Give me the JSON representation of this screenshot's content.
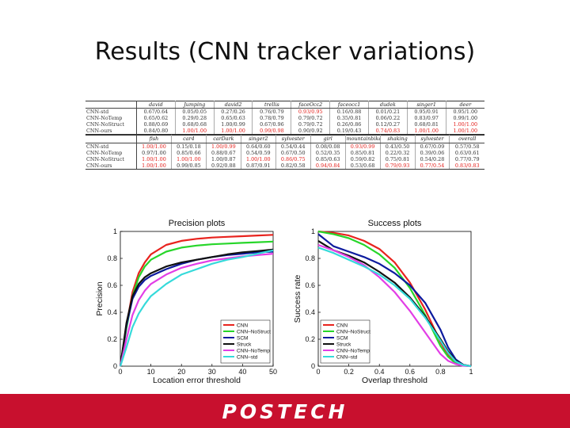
{
  "slide": {
    "title": "Results (CNN tracker variations)"
  },
  "table1": {
    "headers": [
      "",
      "david",
      "Jumping",
      "david2",
      "trellis",
      "faceOcc2",
      "faceocc1",
      "dudek",
      "singer1",
      "deer"
    ],
    "rows": [
      [
        "CNN-std",
        "0.67/0.64",
        "0.05/0.05",
        "0.27/0.26",
        "0.76/0.79",
        "0.93/0.95",
        "0.16/0.88",
        "0.01/0.21",
        "0.95/0.91",
        "0.95/1.00"
      ],
      [
        "CNN-NoTemp",
        "0.65/0.62",
        "0.29/0.28",
        "0.65/0.63",
        "0.78/0.79",
        "0.79/0.72",
        "0.35/0.81",
        "0.06/0.22",
        "0.83/0.97",
        "0.99/1.00"
      ],
      [
        "CNN-NoStruct",
        "0.88/0.69",
        "0.68/0.68",
        "1.00/0.99",
        "0.67/0.96",
        "0.79/0.72",
        "0.26/0.86",
        "0.12/0.27",
        "0.68/0.81",
        "1.00/1.00"
      ],
      [
        "CNN-ours",
        "0.84/0.80",
        "1.00/1.00",
        "1.00/1.00",
        "0.99/0.98",
        "0.90/0.92",
        "0.19/0.43",
        "0.74/0.83",
        "1.00/1.00",
        "1.00/1.00"
      ]
    ]
  },
  "table2": {
    "headers": [
      "",
      "fish",
      "car4",
      "carDark",
      "singer2",
      "sylvester",
      "girl",
      "mountainbike",
      "shaking",
      "sylvester",
      "overall"
    ],
    "rows": [
      [
        "CNN-std",
        "1.00/1.00",
        "0.15/0.18",
        "1.00/0.99",
        "0.64/0.60",
        "0.54/0.44",
        "0.08/0.08",
        "0.93/0.99",
        "0.43/0.50",
        "0.67/0.09",
        "0.57/0.58"
      ],
      [
        "CNN-NoTemp",
        "0.97/1.00",
        "0.85/0.66",
        "0.88/0.67",
        "0.54/0.59",
        "0.67/0.50",
        "0.52/0.35",
        "0.85/0.81",
        "0.22/0.32",
        "0.39/0.06",
        "0.63/0.61"
      ],
      [
        "CNN-NoStruct",
        "1.00/1.00",
        "1.00/1.00",
        "1.00/0.87",
        "1.00/1.00",
        "0.86/0.75",
        "0.85/0.63",
        "0.59/0.82",
        "0.75/0.81",
        "0.54/0.28",
        "0.77/0.79"
      ],
      [
        "CNN-ours",
        "1.00/1.00",
        "0.99/0.85",
        "0.92/0.88",
        "0.87/0.91",
        "0.82/0.58",
        "0.94/0.84",
        "0.53/0.68",
        "0.79/0.93",
        "0.77/0.54",
        "0.83/0.83"
      ]
    ]
  },
  "table_highlight_colors": {
    "best": "#e4201c",
    "normal": "#333333"
  },
  "chart_data": [
    {
      "type": "line",
      "title": "Precision plots",
      "xlabel": "Location error threshold",
      "ylabel": "Precision",
      "xlim": [
        0,
        50
      ],
      "ylim": [
        0,
        1
      ],
      "xticks": [
        0,
        10,
        20,
        30,
        40,
        50
      ],
      "yticks": [
        0,
        0.2,
        0.4,
        0.6,
        0.8,
        1
      ],
      "grid": false,
      "legend": "bottom-right",
      "x": [
        0,
        2,
        4,
        6,
        8,
        10,
        15,
        20,
        25,
        30,
        35,
        40,
        45,
        50
      ],
      "series": [
        {
          "name": "CNN",
          "color": "#e8231e",
          "values": [
            0,
            0.3,
            0.55,
            0.69,
            0.77,
            0.83,
            0.9,
            0.93,
            0.945,
            0.955,
            0.96,
            0.965,
            0.97,
            0.975
          ]
        },
        {
          "name": "CNN–NoStruct",
          "color": "#27d62a",
          "values": [
            0,
            0.28,
            0.52,
            0.66,
            0.74,
            0.79,
            0.85,
            0.88,
            0.895,
            0.905,
            0.91,
            0.915,
            0.92,
            0.925
          ]
        },
        {
          "name": "SCM",
          "color": "#0c1a9e",
          "values": [
            0,
            0.3,
            0.5,
            0.59,
            0.64,
            0.67,
            0.72,
            0.76,
            0.79,
            0.81,
            0.825,
            0.835,
            0.845,
            0.85
          ]
        },
        {
          "name": "Struck",
          "color": "#111111",
          "values": [
            0,
            0.32,
            0.52,
            0.61,
            0.66,
            0.69,
            0.74,
            0.77,
            0.79,
            0.81,
            0.83,
            0.845,
            0.855,
            0.865
          ]
        },
        {
          "name": "CNN–NoTemp",
          "color": "#e23ee6",
          "values": [
            0,
            0.2,
            0.38,
            0.49,
            0.56,
            0.61,
            0.68,
            0.73,
            0.76,
            0.785,
            0.8,
            0.815,
            0.825,
            0.835
          ]
        },
        {
          "name": "CNN–std",
          "color": "#35dada",
          "values": [
            0,
            0.14,
            0.29,
            0.39,
            0.46,
            0.52,
            0.61,
            0.68,
            0.72,
            0.76,
            0.79,
            0.81,
            0.835,
            0.86
          ]
        }
      ]
    },
    {
      "type": "line",
      "title": "Success plots",
      "xlabel": "Overlap threshold",
      "ylabel": "Success rate",
      "xlim": [
        0,
        1
      ],
      "ylim": [
        0,
        1
      ],
      "xticks": [
        0,
        0.2,
        0.4,
        0.6,
        0.8,
        1
      ],
      "yticks": [
        0,
        0.2,
        0.4,
        0.6,
        0.8,
        1
      ],
      "grid": false,
      "legend": "bottom-left",
      "x": [
        0,
        0.1,
        0.2,
        0.3,
        0.4,
        0.5,
        0.6,
        0.7,
        0.8,
        0.85,
        0.9,
        0.95,
        1
      ],
      "series": [
        {
          "name": "CNN",
          "color": "#e8231e",
          "values": [
            1,
            0.99,
            0.97,
            0.93,
            0.87,
            0.77,
            0.62,
            0.42,
            0.18,
            0.08,
            0.03,
            0.005,
            0
          ]
        },
        {
          "name": "CNN–NoStruct",
          "color": "#27d62a",
          "values": [
            1,
            0.98,
            0.95,
            0.9,
            0.83,
            0.73,
            0.58,
            0.38,
            0.15,
            0.07,
            0.02,
            0.005,
            0
          ]
        },
        {
          "name": "SCM",
          "color": "#0c1a9e",
          "values": [
            0.98,
            0.89,
            0.85,
            0.81,
            0.76,
            0.69,
            0.6,
            0.47,
            0.27,
            0.14,
            0.05,
            0.01,
            0
          ]
        },
        {
          "name": "Struck",
          "color": "#111111",
          "values": [
            0.93,
            0.86,
            0.82,
            0.77,
            0.7,
            0.62,
            0.51,
            0.37,
            0.2,
            0.11,
            0.04,
            0.01,
            0
          ]
        },
        {
          "name": "CNN–NoTemp",
          "color": "#e23ee6",
          "values": [
            0.9,
            0.86,
            0.81,
            0.75,
            0.66,
            0.55,
            0.41,
            0.25,
            0.09,
            0.04,
            0.015,
            0.003,
            0
          ]
        },
        {
          "name": "CNN–std",
          "color": "#35dada",
          "values": [
            0.88,
            0.84,
            0.79,
            0.74,
            0.68,
            0.6,
            0.5,
            0.36,
            0.19,
            0.1,
            0.035,
            0.008,
            0
          ]
        }
      ]
    }
  ],
  "footer": {
    "logo_text": "POSTECH",
    "background": "#c8102e"
  }
}
